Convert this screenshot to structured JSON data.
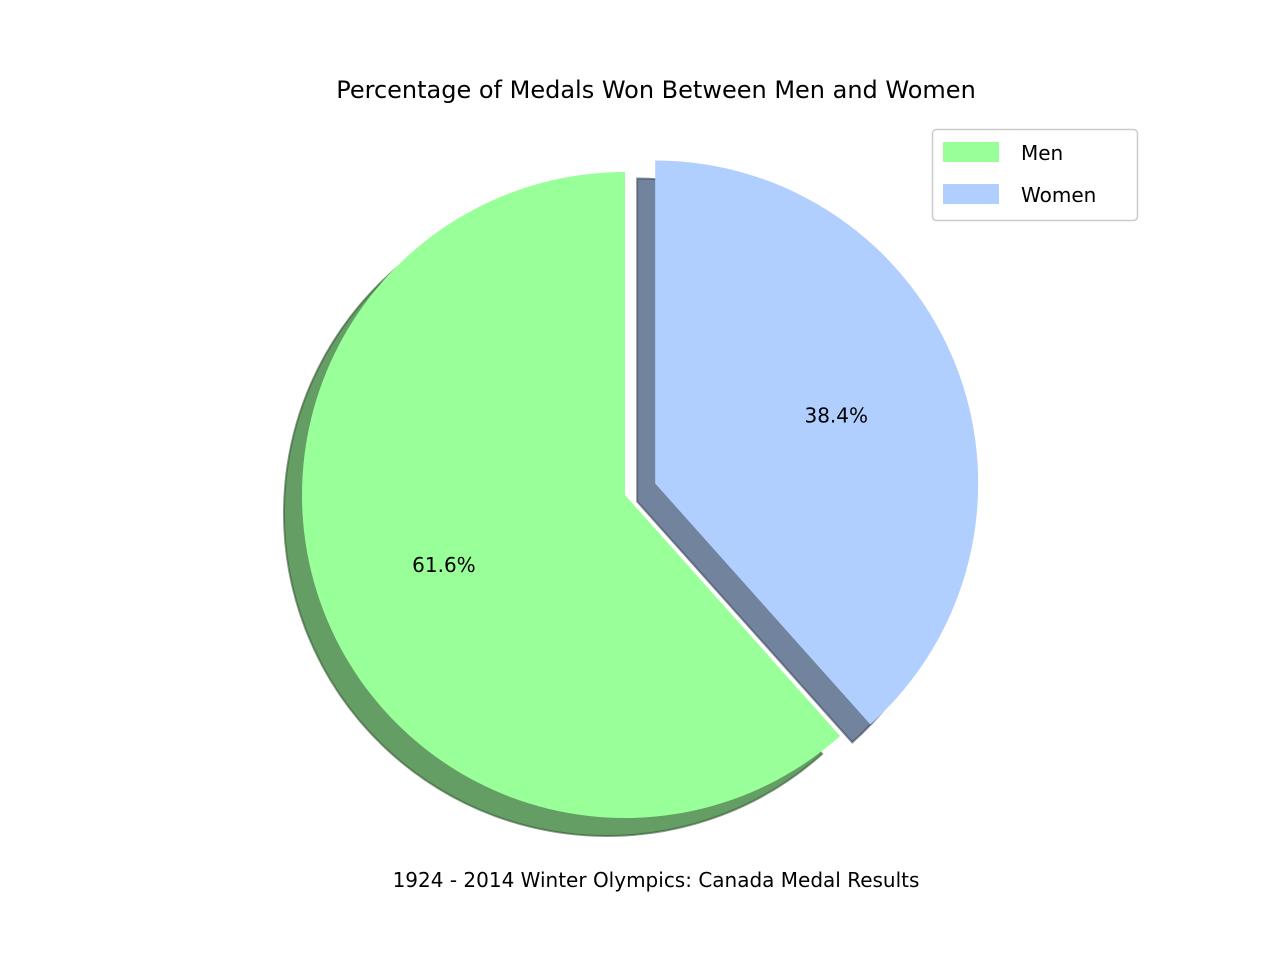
{
  "chart_data": {
    "type": "pie",
    "title": "Percentage of Medals Won Between Men and Women",
    "xlabel": "1924 - 2014 Winter Olympics: Canada Medal Results",
    "categories": [
      "Men",
      "Women"
    ],
    "values": [
      61.6,
      38.4
    ],
    "labels": [
      "61.6%",
      "38.4%"
    ],
    "colors": [
      "#99ff99",
      "#b0cfff"
    ],
    "exploded": [
      "Women"
    ],
    "shadow": true,
    "start_angle_deg": 90,
    "direction": "counterclockwise",
    "legend": {
      "placement": "top-right",
      "entries": [
        "Men",
        "Women"
      ]
    }
  }
}
